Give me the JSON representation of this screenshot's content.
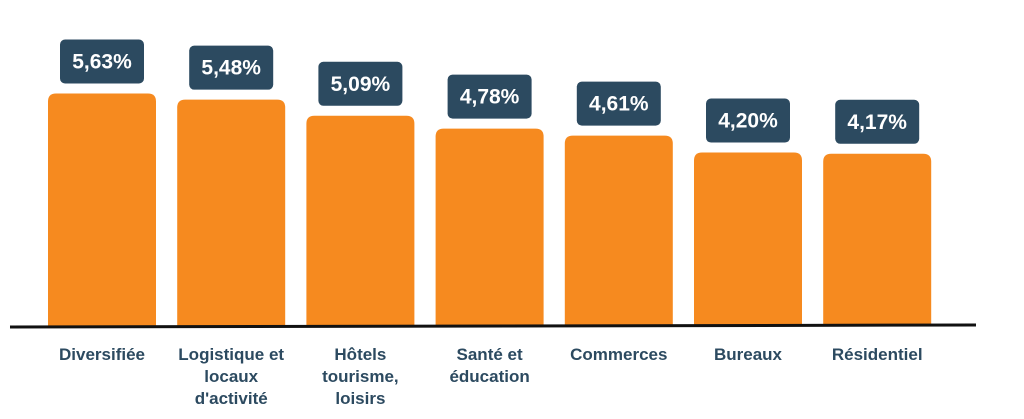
{
  "colors": {
    "bar": "#f68a1f",
    "label_box": "#2c4a60",
    "label_text": "#ffffff",
    "category_text": "#2c4a60",
    "baseline": "#111111"
  },
  "chart_data": {
    "type": "bar",
    "title": "",
    "xlabel": "",
    "ylabel": "",
    "ylim": [
      0,
      6.1
    ],
    "grid": false,
    "legend": "none",
    "categories": [
      [
        "Diversifiée"
      ],
      [
        "Logistique et",
        "locaux",
        "d'activité"
      ],
      [
        "Hôtels",
        "tourisme,",
        "loisirs"
      ],
      [
        "Santé et",
        "éducation"
      ],
      [
        "Commerces"
      ],
      [
        "Bureaux"
      ],
      [
        "Résidentiel"
      ]
    ],
    "values": [
      5.63,
      5.48,
      5.09,
      4.78,
      4.61,
      4.2,
      4.17
    ],
    "value_labels": [
      "5,63%",
      "5,48%",
      "5,09%",
      "4,78%",
      "4,61%",
      "4,20%",
      "4,17%"
    ]
  }
}
